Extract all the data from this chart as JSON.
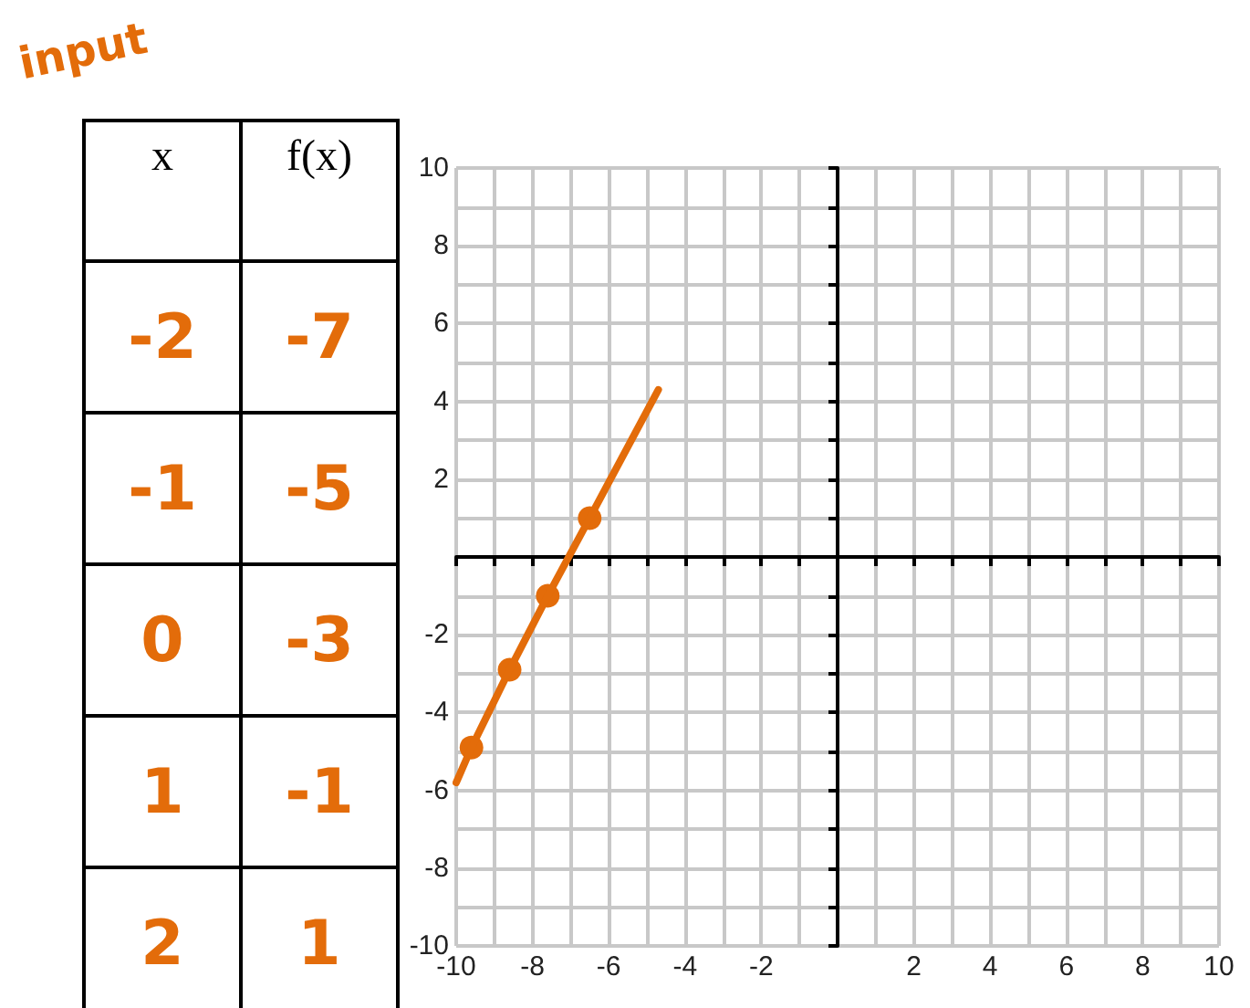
{
  "chart_data": {
    "type": "line",
    "xlim": [
      -10,
      10
    ],
    "ylim": [
      -10,
      10
    ],
    "annotations": [
      "input",
      "x",
      "f(x)",
      "-2",
      "-7",
      "-1",
      "-5",
      "0",
      "-3",
      "1",
      "-1",
      "2",
      "1"
    ],
    "xticks": [
      -10,
      {
        "value": -9,
        "label": null
      },
      -8,
      {
        "value": -7,
        "label": null
      },
      -6,
      {
        "value": -5,
        "label": null
      },
      -4,
      {
        "value": -3,
        "label": null
      },
      -2,
      {
        "value": -1,
        "label": null
      },
      {
        "value": 0,
        "label": null
      },
      {
        "value": 1,
        "label": null
      },
      2,
      {
        "value": 3,
        "label": null
      },
      4,
      {
        "value": 5,
        "label": null
      },
      6,
      {
        "value": 7,
        "label": null
      },
      8,
      {
        "value": 9,
        "label": null
      },
      10
    ],
    "yticks": [
      -10,
      {
        "value": -9,
        "label": null
      },
      -8,
      {
        "value": -7,
        "label": null
      },
      -6,
      {
        "value": -5,
        "label": null
      },
      -4,
      {
        "value": -3,
        "label": null
      },
      -2,
      {
        "value": -1,
        "label": null
      },
      {
        "value": 0,
        "label": null
      },
      {
        "value": 1,
        "label": null
      },
      2,
      {
        "value": 3,
        "label": null
      },
      4,
      {
        "value": 5,
        "label": null
      },
      6,
      {
        "value": 7,
        "label": null
      },
      8,
      {
        "value": 9,
        "label": null
      },
      10
    ],
    "grid": true,
    "series": [
      {
        "type": "line",
        "color": "#e36c0a",
        "marker": "none",
        "x": [
          -10,
          -9.6,
          -8.6,
          -7.6,
          -6.5,
          -4.7
        ],
        "values": [
          -5.8,
          -4.9,
          -2.9,
          -1,
          1,
          4.3
        ]
      },
      {
        "type": "scatter",
        "color": "#e36c0a",
        "marker": "circle",
        "x": [
          -9.6,
          -8.6,
          -7.6,
          -6.5
        ],
        "values": [
          -4.9,
          -2.9,
          -1,
          1
        ]
      }
    ]
  }
}
